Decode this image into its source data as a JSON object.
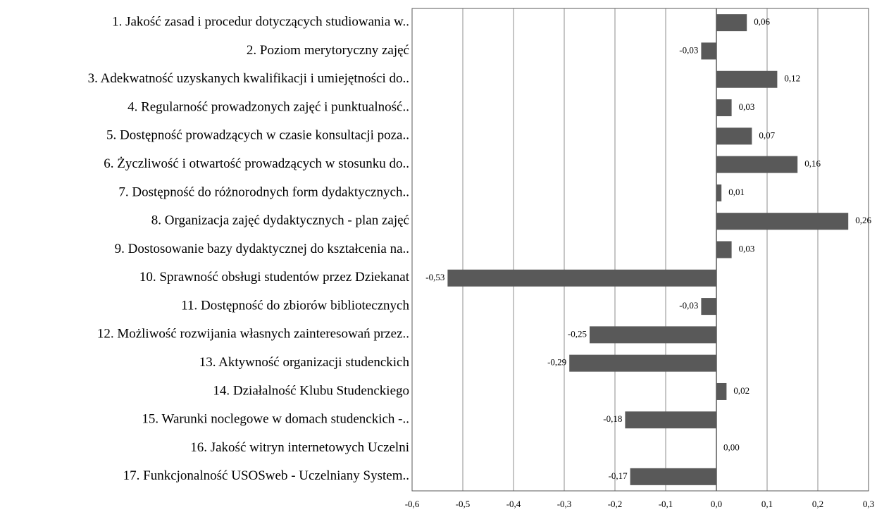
{
  "chart_data": {
    "type": "bar",
    "orientation": "horizontal",
    "categories": [
      "1. Jakość zasad i procedur dotyczących studiowania w..",
      "2. Poziom merytoryczny zajęć",
      "3. Adekwatność uzyskanych kwalifikacji i umiejętności do..",
      "4. Regularność prowadzonych zajęć i punktualność..",
      "5. Dostępność prowadzących w czasie konsultacji poza..",
      "6. Życzliwość i otwartość prowadzących w stosunku do..",
      "7. Dostępność do różnorodnych form dydaktycznych..",
      "8. Organizacja zajęć dydaktycznych - plan zajęć",
      "9. Dostosowanie bazy dydaktycznej do kształcenia na..",
      "10. Sprawność obsługi studentów przez Dziekanat",
      "11. Dostępność do zbiorów bibliotecznych",
      "12. Możliwość rozwijania własnych zainteresowań przez..",
      "13. Aktywność organizacji studenckich",
      "14. Działalność Klubu Studenckiego",
      "15. Warunki noclegowe w domach studenckich -..",
      "16. Jakość witryn internetowych Uczelni",
      "17. Funkcjonalność USOSweb - Uczelniany System.."
    ],
    "values": [
      0.06,
      -0.03,
      0.12,
      0.03,
      0.07,
      0.16,
      0.01,
      0.26,
      0.03,
      -0.53,
      -0.03,
      -0.25,
      -0.29,
      0.02,
      -0.18,
      0.0,
      -0.17
    ],
    "value_labels": [
      "0,06",
      "-0,03",
      "0,12",
      "0,03",
      "0,07",
      "0,16",
      "0,01",
      "0,26",
      "0,03",
      "-0,53",
      "-0,03",
      "-0,25",
      "-0,29",
      "0,02",
      "-0,18",
      "0,00",
      "-0,17"
    ],
    "color": "#595959",
    "xlim": [
      -0.6,
      0.3
    ],
    "xticks": [
      {
        "value": -0.6,
        "label": "-0,6"
      },
      {
        "value": -0.5,
        "label": "-0,5"
      },
      {
        "value": -0.4,
        "label": "-0,4"
      },
      {
        "value": -0.3,
        "label": "-0,3"
      },
      {
        "value": -0.2,
        "label": "-0,2"
      },
      {
        "value": -0.1,
        "label": "-0,1"
      },
      {
        "value": 0.0,
        "label": "0,0"
      },
      {
        "value": 0.1,
        "label": "0,1"
      },
      {
        "value": 0.2,
        "label": "0,2"
      },
      {
        "value": 0.3,
        "label": "0,3"
      }
    ],
    "grid": true
  }
}
